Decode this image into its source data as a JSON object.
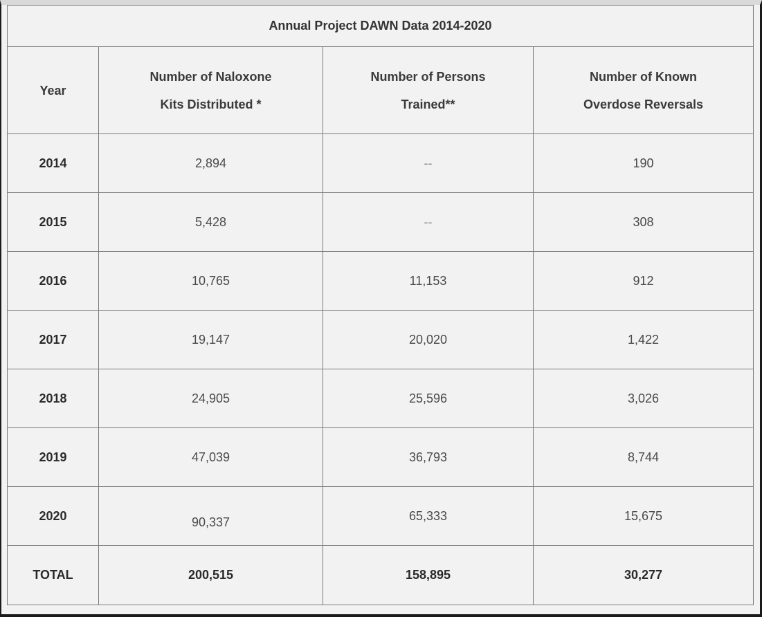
{
  "table": {
    "title": "Annual Project DAWN Data 2014-2020",
    "headers": {
      "year": "Year",
      "kits_line1": "Number of Naloxone",
      "kits_line2": "Kits Distributed *",
      "trained_line1": "Number of Persons",
      "trained_line2": "Trained**",
      "reversals_line1": "Number of Known",
      "reversals_line2": "Overdose Reversals"
    },
    "rows": [
      {
        "year": "2014",
        "kits": "2,894",
        "trained": "--",
        "reversals": "190"
      },
      {
        "year": "2015",
        "kits": "5,428",
        "trained": "--",
        "reversals": "308"
      },
      {
        "year": "2016",
        "kits": "10,765",
        "trained": "11,153",
        "reversals": "912"
      },
      {
        "year": "2017",
        "kits": "19,147",
        "trained": "20,020",
        "reversals": "1,422"
      },
      {
        "year": "2018",
        "kits": "24,905",
        "trained": "25,596",
        "reversals": "3,026"
      },
      {
        "year": "2019",
        "kits": "47,039",
        "trained": "36,793",
        "reversals": "8,744"
      },
      {
        "year": "2020",
        "kits": "90,337",
        "trained": "65,333",
        "reversals": "15,675"
      }
    ],
    "total": {
      "label": "TOTAL",
      "kits": "200,515",
      "trained": "158,895",
      "reversals": "30,277"
    }
  }
}
